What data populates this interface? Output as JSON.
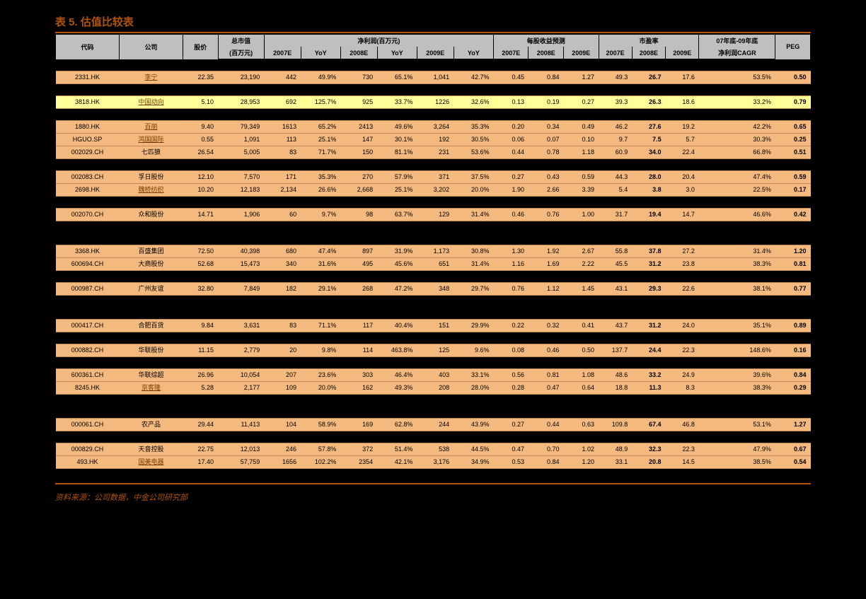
{
  "title": "表 5. 估值比较表",
  "source": "资料来源：公司数据，中金公司研究部",
  "colors": {
    "accent": "#b35408",
    "row_bg": "#f4b97f",
    "highlight_bg": "#ffff99",
    "header_bg": "#bfbfbf",
    "page_bg": "#000000"
  },
  "header": {
    "code": "代码",
    "company": "公司",
    "price": "股价",
    "mktcap": "总市值",
    "mktcap_unit": "(百万元)",
    "netprofit": "净利润(百万元)",
    "eps": "每股收益预测",
    "pe": "市盈率",
    "cagr_label": "07年底-09年底",
    "cagr_sub": "净利润CAGR",
    "peg": "PEG",
    "y2007e": "2007E",
    "y2008e": "2008E",
    "y2009e": "2009E",
    "yoy": "YoY"
  },
  "groups": [
    {
      "rows": [
        {
          "code": "2331.HK",
          "company": "李宁",
          "link": true,
          "price": "22.35",
          "mktcap": "23,190",
          "np07": "442",
          "yoy07": "49.9%",
          "np08": "730",
          "yoy08": "65.1%",
          "np09": "1,041",
          "yoy09": "42.7%",
          "eps07": "0.45",
          "eps08": "0.84",
          "eps09": "1.27",
          "pe07": "49.3",
          "pe08": "26.7",
          "pe09": "17.6",
          "cagr": "53.5%",
          "peg": "0.50"
        }
      ]
    },
    {
      "rows": [
        {
          "code": "3818.HK",
          "company": "中国动向",
          "link": true,
          "highlight": true,
          "price": "5.10",
          "mktcap": "28,953",
          "np07": "692",
          "yoy07": "125.7%",
          "np08": "925",
          "yoy08": "33.7%",
          "np09": "1226",
          "yoy09": "32.6%",
          "eps07": "0.13",
          "eps08": "0.19",
          "eps09": "0.27",
          "pe07": "39.3",
          "pe08": "26.3",
          "pe09": "18.6",
          "cagr": "33.2%",
          "peg": "0.79"
        }
      ]
    },
    {
      "rows": [
        {
          "code": "1880.HK",
          "company": "百丽",
          "link": true,
          "price": "9.40",
          "mktcap": "79,349",
          "np07": "1613",
          "yoy07": "65.2%",
          "np08": "2413",
          "yoy08": "49.6%",
          "np09": "3,264",
          "yoy09": "35.3%",
          "eps07": "0.20",
          "eps08": "0.34",
          "eps09": "0.49",
          "pe07": "46.2",
          "pe08": "27.6",
          "pe09": "19.2",
          "cagr": "42.2%",
          "peg": "0.65"
        },
        {
          "code": "HGUO.SP",
          "company": "鸿国国际",
          "link": true,
          "price": "0.55",
          "mktcap": "1,091",
          "np07": "113",
          "yoy07": "25.1%",
          "np08": "147",
          "yoy08": "30.1%",
          "np09": "192",
          "yoy09": "30.5%",
          "eps07": "0.06",
          "eps08": "0.07",
          "eps09": "0.10",
          "pe07": "9.7",
          "pe08": "7.5",
          "pe09": "5.7",
          "cagr": "30.3%",
          "peg": "0.25"
        },
        {
          "code": "002029.CH",
          "company": "七匹狼",
          "link": false,
          "price": "26.54",
          "mktcap": "5,005",
          "np07": "83",
          "yoy07": "71.7%",
          "np08": "150",
          "yoy08": "81.1%",
          "np09": "231",
          "yoy09": "53.6%",
          "eps07": "0.44",
          "eps08": "0.78",
          "eps09": "1.18",
          "pe07": "60.9",
          "pe08": "34.0",
          "pe09": "22.4",
          "cagr": "66.8%",
          "peg": "0.51"
        }
      ]
    },
    {
      "rows": [
        {
          "code": "002083.CH",
          "company": "孚日股份",
          "link": false,
          "price": "12.10",
          "mktcap": "7,570",
          "np07": "171",
          "yoy07": "35.3%",
          "np08": "270",
          "yoy08": "57.9%",
          "np09": "371",
          "yoy09": "37.5%",
          "eps07": "0.27",
          "eps08": "0.43",
          "eps09": "0.59",
          "pe07": "44.3",
          "pe08": "28.0",
          "pe09": "20.4",
          "cagr": "47.4%",
          "peg": "0.59"
        },
        {
          "code": "2698.HK",
          "company": "魏桥纺织",
          "link": true,
          "price": "10.20",
          "mktcap": "12,183",
          "np07": "2,134",
          "yoy07": "26.6%",
          "np08": "2,668",
          "yoy08": "25.1%",
          "np09": "3,202",
          "yoy09": "20.0%",
          "eps07": "1.90",
          "eps08": "2.66",
          "eps09": "3.39",
          "pe07": "5.4",
          "pe08": "3.8",
          "pe09": "3.0",
          "cagr": "22.5%",
          "peg": "0.17"
        }
      ]
    },
    {
      "rows": [
        {
          "code": "002070.CH",
          "company": "众和股份",
          "link": false,
          "price": "14.71",
          "mktcap": "1,906",
          "np07": "60",
          "yoy07": "9.7%",
          "np08": "98",
          "yoy08": "63.7%",
          "np09": "129",
          "yoy09": "31.4%",
          "eps07": "0.46",
          "eps08": "0.76",
          "eps09": "1.00",
          "pe07": "31.7",
          "pe08": "19.4",
          "pe09": "14.7",
          "cagr": "46.6%",
          "peg": "0.42"
        }
      ]
    },
    {
      "bigspacer": true,
      "rows": [
        {
          "code": "3368.HK",
          "company": "百盛集团",
          "link": false,
          "price": "72.50",
          "mktcap": "40,398",
          "np07": "680",
          "yoy07": "47.4%",
          "np08": "897",
          "yoy08": "31.9%",
          "np09": "1,173",
          "yoy09": "30.8%",
          "eps07": "1.30",
          "eps08": "1.92",
          "eps09": "2.67",
          "pe07": "55.8",
          "pe08": "37.8",
          "pe09": "27.2",
          "cagr": "31.4%",
          "peg": "1.20"
        },
        {
          "code": "600694.CH",
          "company": "大商股份",
          "link": false,
          "price": "52.68",
          "mktcap": "15,473",
          "np07": "340",
          "yoy07": "31.6%",
          "np08": "495",
          "yoy08": "45.6%",
          "np09": "651",
          "yoy09": "31.4%",
          "eps07": "1.16",
          "eps08": "1.69",
          "eps09": "2.22",
          "pe07": "45.5",
          "pe08": "31.2",
          "pe09": "23.8",
          "cagr": "38.3%",
          "peg": "0.81"
        }
      ]
    },
    {
      "rows": [
        {
          "code": "000987.CH",
          "company": "广州友谊",
          "link": false,
          "price": "32.80",
          "mktcap": "7,849",
          "np07": "182",
          "yoy07": "29.1%",
          "np08": "268",
          "yoy08": "47.2%",
          "np09": "348",
          "yoy09": "29.7%",
          "eps07": "0.76",
          "eps08": "1.12",
          "eps09": "1.45",
          "pe07": "43.1",
          "pe08": "29.3",
          "pe09": "22.6",
          "cagr": "38.1%",
          "peg": "0.77"
        }
      ]
    },
    {
      "bigspacer": true,
      "rows": [
        {
          "code": "000417.CH",
          "company": "合肥百货",
          "link": false,
          "price": "9.84",
          "mktcap": "3,631",
          "np07": "83",
          "yoy07": "71.1%",
          "np08": "117",
          "yoy08": "40.4%",
          "np09": "151",
          "yoy09": "29.9%",
          "eps07": "0.22",
          "eps08": "0.32",
          "eps09": "0.41",
          "pe07": "43.7",
          "pe08": "31.2",
          "pe09": "24.0",
          "cagr": "35.1%",
          "peg": "0.89"
        }
      ]
    },
    {
      "rows": [
        {
          "code": "000882.CH",
          "company": "华联股份",
          "link": false,
          "price": "11.15",
          "mktcap": "2,779",
          "np07": "20",
          "yoy07": "9.8%",
          "np08": "114",
          "yoy08": "463.8%",
          "np09": "125",
          "yoy09": "9.6%",
          "eps07": "0.08",
          "eps08": "0.46",
          "eps09": "0.50",
          "pe07": "137.7",
          "pe08": "24.4",
          "pe09": "22.3",
          "cagr": "148.6%",
          "peg": "0.16"
        }
      ]
    },
    {
      "rows": [
        {
          "code": "600361.CH",
          "company": "华联综超",
          "link": false,
          "price": "26.96",
          "mktcap": "10,054",
          "np07": "207",
          "yoy07": "23.6%",
          "np08": "303",
          "yoy08": "46.4%",
          "np09": "403",
          "yoy09": "33.1%",
          "eps07": "0.56",
          "eps08": "0.81",
          "eps09": "1.08",
          "pe07": "48.6",
          "pe08": "33.2",
          "pe09": "24.9",
          "cagr": "39.6%",
          "peg": "0.84"
        },
        {
          "code": "8245.HK",
          "company": "京客隆",
          "link": true,
          "price": "5.28",
          "mktcap": "2,177",
          "np07": "109",
          "yoy07": "20.0%",
          "np08": "162",
          "yoy08": "49.3%",
          "np09": "208",
          "yoy09": "28.0%",
          "eps07": "0.28",
          "eps08": "0.47",
          "eps09": "0.64",
          "pe07": "18.8",
          "pe08": "11.3",
          "pe09": "8.3",
          "cagr": "38.3%",
          "peg": "0.29"
        }
      ]
    },
    {
      "bigspacer": true,
      "rows": [
        {
          "code": "000061.CH",
          "company": "农产品",
          "link": false,
          "price": "29.44",
          "mktcap": "11,413",
          "np07": "104",
          "yoy07": "58.9%",
          "np08": "169",
          "yoy08": "62.8%",
          "np09": "244",
          "yoy09": "43.9%",
          "eps07": "0.27",
          "eps08": "0.44",
          "eps09": "0.63",
          "pe07": "109.8",
          "pe08": "67.4",
          "pe09": "46.8",
          "cagr": "53.1%",
          "peg": "1.27"
        }
      ]
    },
    {
      "rows": [
        {
          "code": "000829.CH",
          "company": "天音控股",
          "link": false,
          "price": "22.75",
          "mktcap": "12,013",
          "np07": "246",
          "yoy07": "57.8%",
          "np08": "372",
          "yoy08": "51.4%",
          "np09": "538",
          "yoy09": "44.5%",
          "eps07": "0.47",
          "eps08": "0.70",
          "eps09": "1.02",
          "pe07": "48.9",
          "pe08": "32.3",
          "pe09": "22.3",
          "cagr": "47.9%",
          "peg": "0.67"
        },
        {
          "code": "493.HK",
          "company": "国美电器",
          "link": true,
          "price": "17.40",
          "mktcap": "57,759",
          "np07": "1656",
          "yoy07": "102.2%",
          "np08": "2354",
          "yoy08": "42.1%",
          "np09": "3,176",
          "yoy09": "34.9%",
          "eps07": "0.53",
          "eps08": "0.84",
          "eps09": "1.20",
          "pe07": "33.1",
          "pe08": "20.8",
          "pe09": "14.5",
          "cagr": "38.5%",
          "peg": "0.54"
        }
      ]
    }
  ]
}
